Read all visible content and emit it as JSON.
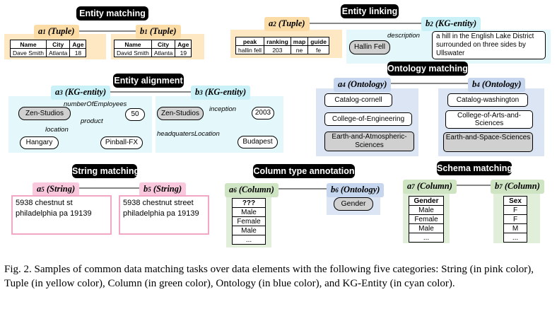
{
  "em": {
    "title": "Entity matching",
    "a": {
      "v": "a",
      "sub": "1",
      "type": " (Tuple)"
    },
    "b": {
      "v": "b",
      "sub": "1",
      "type": " (Tuple)"
    },
    "headers": [
      "Name",
      "City",
      "Age"
    ],
    "a_row": [
      "Dave Smith",
      "Atlanta",
      "18"
    ],
    "b_row": [
      "David Smith",
      "Atlanta",
      "19"
    ]
  },
  "el": {
    "title": "Entity linking",
    "a": {
      "v": "a",
      "sub": "2",
      "type": " (Tuple)"
    },
    "b": {
      "v": "b",
      "sub": "2",
      "type": " (KG-entity)"
    },
    "headers": [
      "peak",
      "ranking",
      "map",
      "guide"
    ],
    "row": [
      "hallin fell",
      "203",
      "ne",
      "fe"
    ],
    "node": "Hallin Fell",
    "edge": "description",
    "desc": "a hill in the English Lake District surrounded on three sides by Ullswater"
  },
  "ea": {
    "title": "Entity alignment",
    "a": {
      "v": "a",
      "sub": "3",
      "type": " (KG-entity)"
    },
    "b": {
      "v": "b",
      "sub": "3",
      "type": " (KG-entity)"
    },
    "left": {
      "center": "Zen-Studios",
      "e1": "numberOfEmployees",
      "n1": "50",
      "e2": "product",
      "n2": "Pinball-FX",
      "e3": "location",
      "n3": "Hangary"
    },
    "right": {
      "center": "Zen-Studios",
      "e1": "inception",
      "n1": "2003",
      "e2": "headquatersLocation",
      "n2": "Budapest"
    }
  },
  "om": {
    "title": "Ontology matching",
    "a": {
      "v": "a",
      "sub": "4",
      "type": " (Ontology)"
    },
    "b": {
      "v": "b",
      "sub": "4",
      "type": " (Ontology)"
    },
    "left": [
      "Catalog-cornell",
      "College-of-Engineering",
      "Earth-and-Atmospheric-Sciences"
    ],
    "right": [
      "Catalog-washington",
      "College-of-Arts-and-Sciences",
      "Earth-and-Space-Sciences"
    ]
  },
  "sm": {
    "title": "String matching",
    "a": {
      "v": "a",
      "sub": "5",
      "type": " (String)"
    },
    "b": {
      "v": "b",
      "sub": "5",
      "type": " (String)"
    },
    "a_text": "5938 chestnut st philadelphia pa 19139",
    "b_text": "5938 chestnut street philadelphia pa 19139"
  },
  "cta": {
    "title": "Column type annotation",
    "a": {
      "v": "a",
      "sub": "6",
      "type": " (Column)"
    },
    "b": {
      "v": "b",
      "sub": "6",
      "type": " (Ontology)"
    },
    "column": [
      "???",
      "Male",
      "Female",
      "Male",
      "..."
    ],
    "ontology": "Gender"
  },
  "scm": {
    "title": "Schema matching",
    "a": {
      "v": "a",
      "sub": "7",
      "type": " (Column)"
    },
    "b": {
      "v": "b",
      "sub": "7",
      "type": " (Column)"
    },
    "a_col": [
      "Gender",
      "Male",
      "Female",
      "Male",
      "..."
    ],
    "b_col": [
      "Sex",
      "F",
      "F",
      "M",
      "..."
    ]
  },
  "caption": "Fig. 2.  Samples of common data matching tasks over data elements with the following five categories: String (in pink color), Tuple (in yellow color), Column (in green color), Ontology (in blue color), and KG-Entity (in cyan color).",
  "colors": {
    "pink": "#f9c8dc",
    "yellow": "#fbdba6",
    "green": "#cfe4c3",
    "blue": "#c5d6ee",
    "cyan": "#c9f1f7"
  }
}
